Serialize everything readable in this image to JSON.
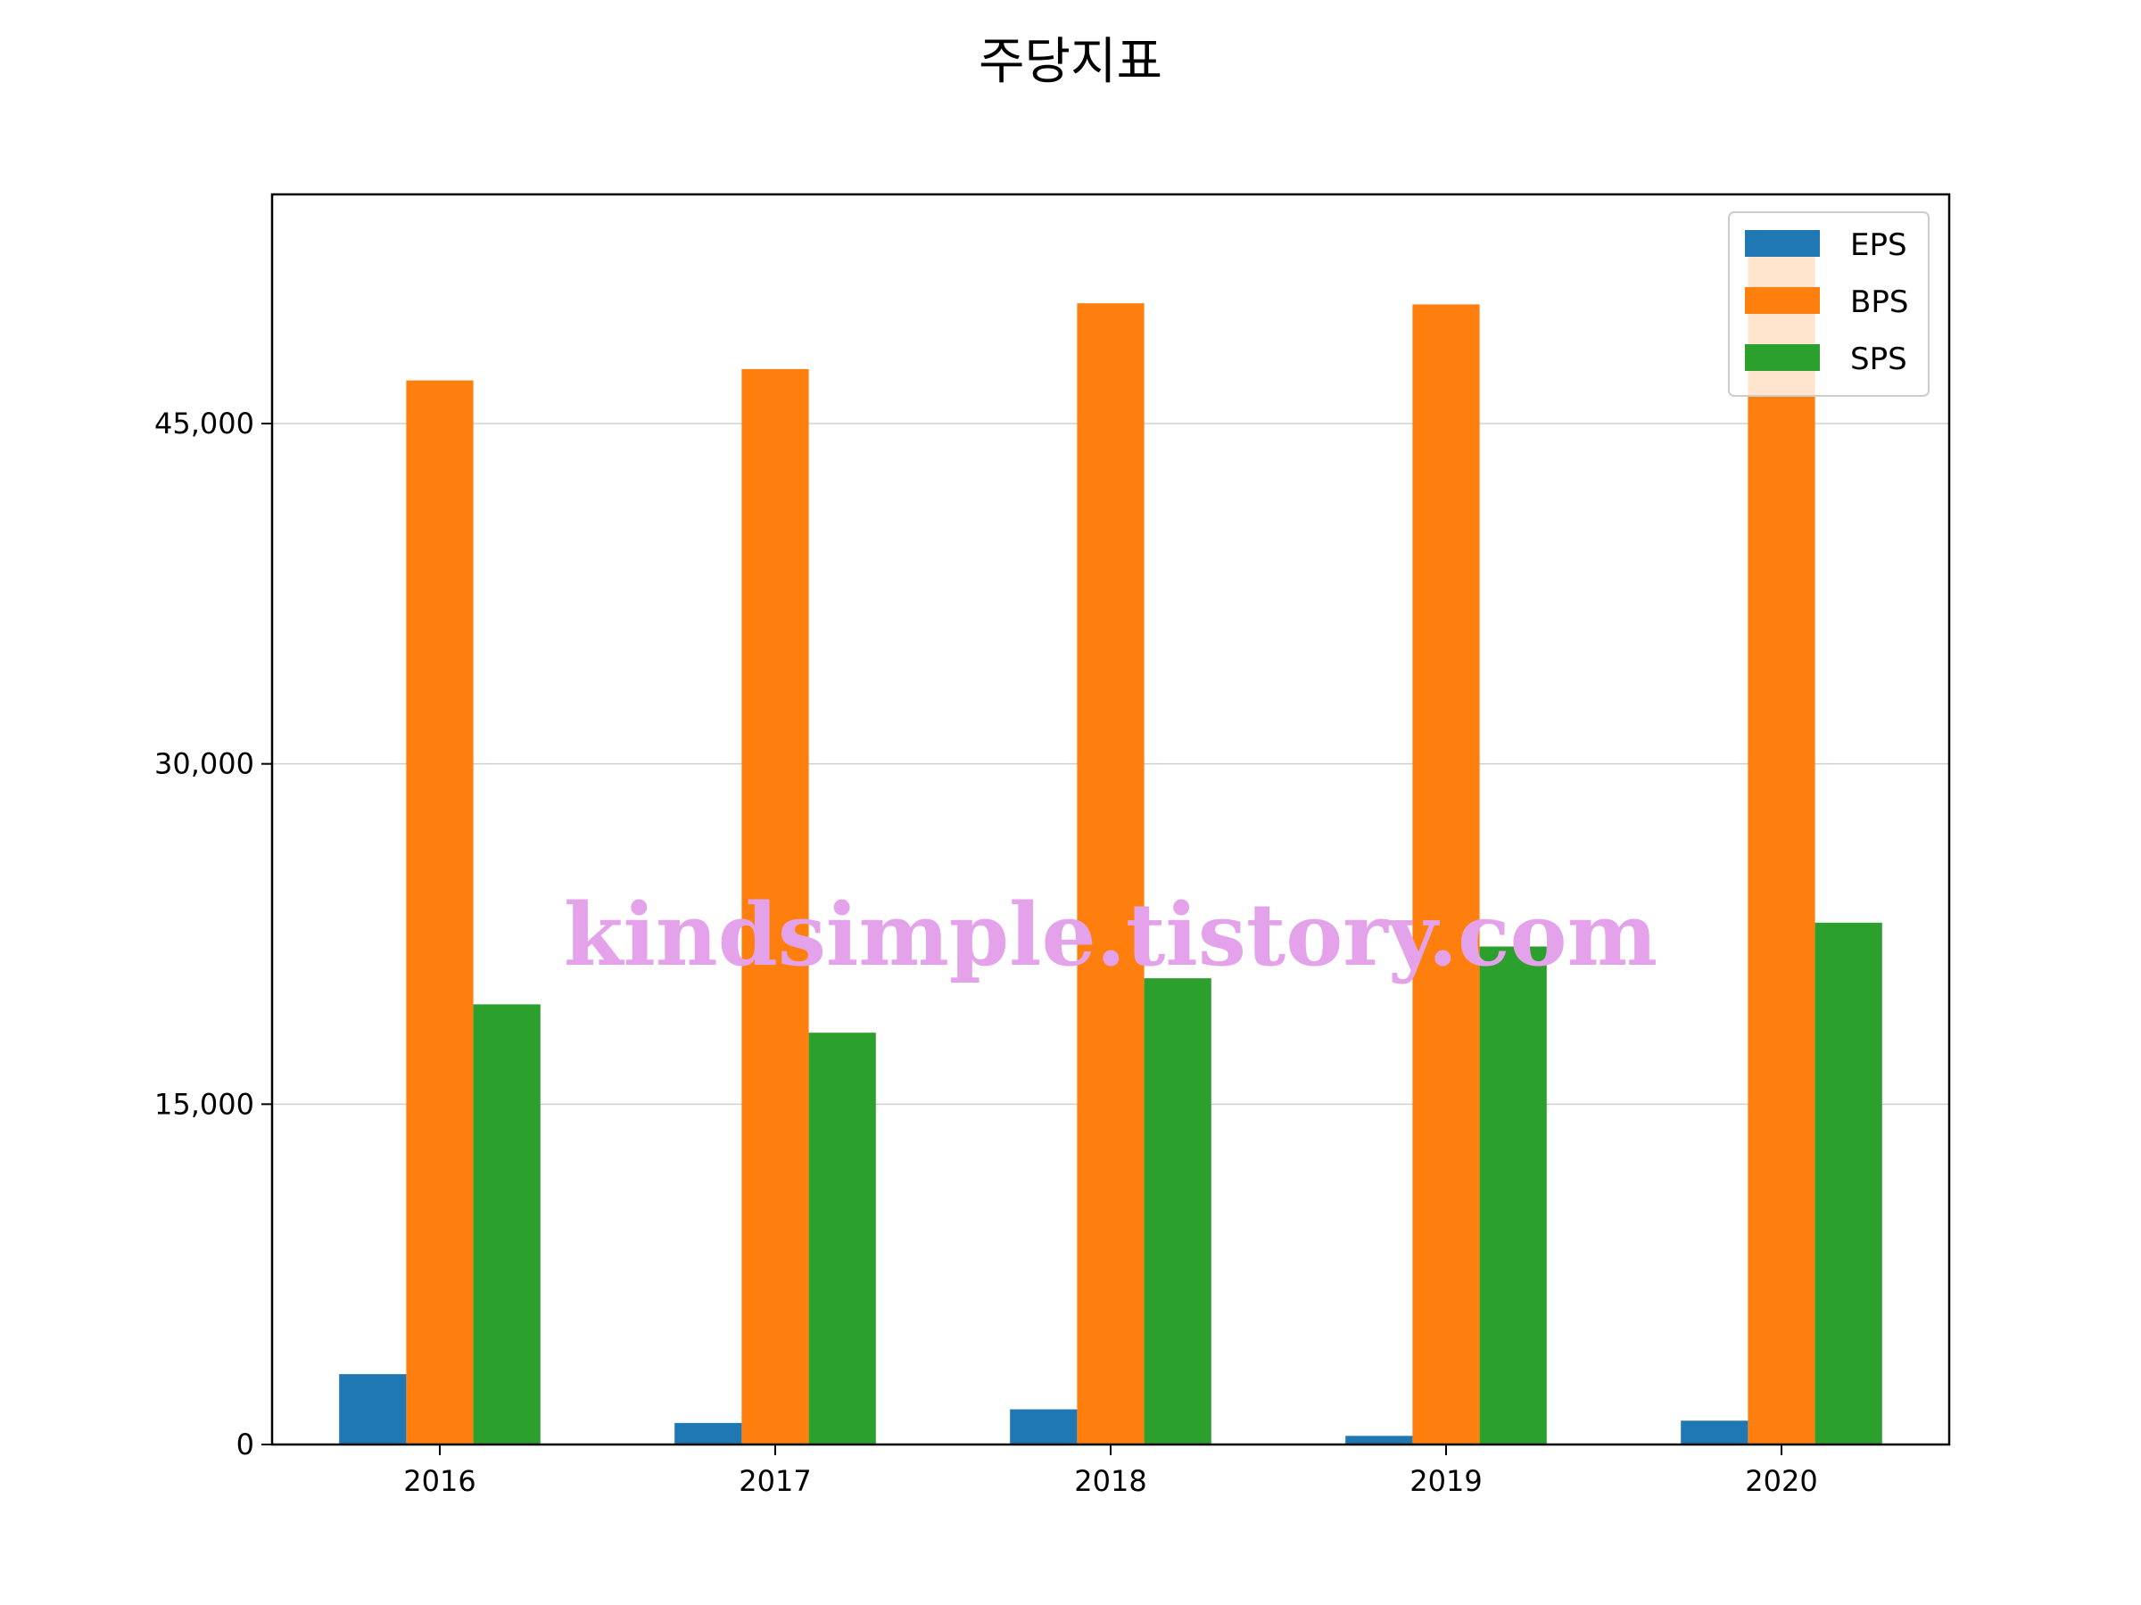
{
  "chart_data": {
    "type": "bar",
    "title": "주당지표",
    "xlabel": "",
    "ylabel": "",
    "categories": [
      "2016",
      "2017",
      "2018",
      "2019",
      "2020"
    ],
    "series": [
      {
        "name": "EPS",
        "color": "#1f77b4",
        "values": [
          3100,
          950,
          1550,
          380,
          1050
        ]
      },
      {
        "name": "BPS",
        "color": "#ff7f0e",
        "values": [
          46900,
          47400,
          50300,
          50250,
          52400
        ]
      },
      {
        "name": "SPS",
        "color": "#2ca02c",
        "values": [
          19400,
          18150,
          20550,
          21950,
          23000
        ]
      }
    ],
    "ylim": [
      0,
      55100
    ],
    "yticks": [
      0,
      15000,
      30000,
      45000
    ],
    "ytick_labels": [
      "0",
      "15,000",
      "30,000",
      "45,000"
    ],
    "grid": "y",
    "legend": "top-right",
    "watermark": "kindsimple.tistory.com"
  }
}
